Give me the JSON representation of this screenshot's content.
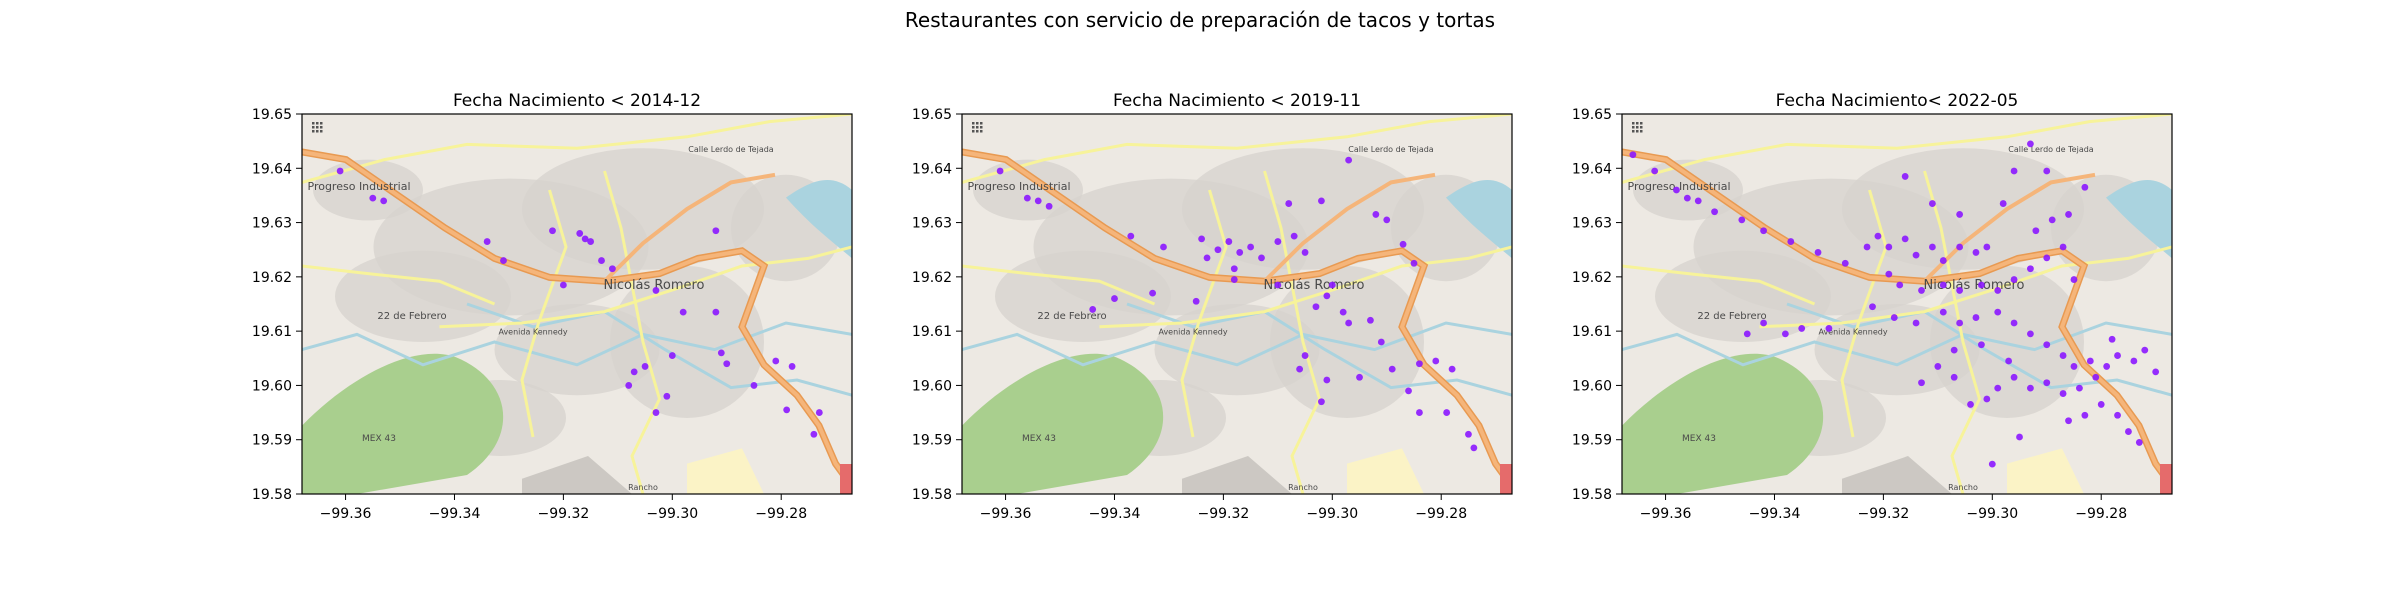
{
  "figure": {
    "suptitle": "Restaurantes con servicio de preparación de tacos y tortas"
  },
  "map": {
    "labels": [
      "Progreso Industrial",
      "Nicolás Romero",
      "22 de Febrero",
      "Avenida Kennedy",
      "Calle Lerdo de Tejada",
      "MEX 43",
      "Rancho"
    ],
    "colors": {
      "land": "#ede9e3",
      "urban": "#d7d3ce",
      "park": "#a9cf8e",
      "water": "#aad3df",
      "major_road": "#f5b57a",
      "minor_road": "#f7f39a",
      "marker": "#8b17ff"
    }
  },
  "chart_data": [
    {
      "type": "scatter",
      "title": "Fecha Nacimiento < 2014-12",
      "xlim": [
        -99.368,
        -99.267
      ],
      "ylim": [
        19.58,
        19.65
      ],
      "xticks": [
        -99.36,
        -99.34,
        -99.32,
        -99.3,
        -99.28
      ],
      "xtick_labels": [
        "−99.36",
        "−99.34",
        "−99.32",
        "−99.30",
        "−99.28"
      ],
      "yticks": [
        19.58,
        19.59,
        19.6,
        19.61,
        19.62,
        19.63,
        19.64,
        19.65
      ],
      "ytick_labels": [
        "19.58",
        "19.59",
        "19.60",
        "19.61",
        "19.62",
        "19.63",
        "19.64",
        "19.65"
      ],
      "series": [
        {
          "color": "#8b17ff",
          "points": [
            [
              -99.361,
              19.6395
            ],
            [
              -99.355,
              19.6345
            ],
            [
              -99.353,
              19.634
            ],
            [
              -99.334,
              19.6265
            ],
            [
              -99.331,
              19.623
            ],
            [
              -99.322,
              19.6285
            ],
            [
              -99.317,
              19.628
            ],
            [
              -99.316,
              19.627
            ],
            [
              -99.315,
              19.6265
            ],
            [
              -99.311,
              19.6215
            ],
            [
              -99.313,
              19.623
            ],
            [
              -99.32,
              19.6185
            ],
            [
              -99.303,
              19.6175
            ],
            [
              -99.292,
              19.6285
            ],
            [
              -99.292,
              19.6135
            ],
            [
              -99.298,
              19.6135
            ],
            [
              -99.3,
              19.6055
            ],
            [
              -99.305,
              19.6035
            ],
            [
              -99.307,
              19.6025
            ],
            [
              -99.308,
              19.6
            ],
            [
              -99.301,
              19.598
            ],
            [
              -99.303,
              19.595
            ],
            [
              -99.291,
              19.606
            ],
            [
              -99.29,
              19.604
            ],
            [
              -99.281,
              19.6045
            ],
            [
              -99.278,
              19.6035
            ],
            [
              -99.285,
              19.6
            ],
            [
              -99.279,
              19.5955
            ],
            [
              -99.273,
              19.595
            ],
            [
              -99.274,
              19.591
            ]
          ]
        }
      ]
    },
    {
      "type": "scatter",
      "title": "Fecha Nacimiento < 2019-11",
      "xlim": [
        -99.368,
        -99.267
      ],
      "ylim": [
        19.58,
        19.65
      ],
      "xticks": [
        -99.36,
        -99.34,
        -99.32,
        -99.3,
        -99.28
      ],
      "xtick_labels": [
        "−99.36",
        "−99.34",
        "−99.32",
        "−99.30",
        "−99.28"
      ],
      "yticks": [
        19.58,
        19.59,
        19.6,
        19.61,
        19.62,
        19.63,
        19.64,
        19.65
      ],
      "ytick_labels": [
        "19.58",
        "19.59",
        "19.60",
        "19.61",
        "19.62",
        "19.63",
        "19.64",
        "19.65"
      ],
      "series": [
        {
          "color": "#8b17ff",
          "points": [
            [
              -99.361,
              19.6395
            ],
            [
              -99.356,
              19.6345
            ],
            [
              -99.354,
              19.634
            ],
            [
              -99.352,
              19.633
            ],
            [
              -99.337,
              19.6275
            ],
            [
              -99.331,
              19.6255
            ],
            [
              -99.324,
              19.627
            ],
            [
              -99.321,
              19.625
            ],
            [
              -99.319,
              19.6265
            ],
            [
              -99.317,
              19.6245
            ],
            [
              -99.315,
              19.6255
            ],
            [
              -99.313,
              19.6235
            ],
            [
              -99.323,
              19.6235
            ],
            [
              -99.318,
              19.6215
            ],
            [
              -99.318,
              19.6195
            ],
            [
              -99.307,
              19.6275
            ],
            [
              -99.31,
              19.6265
            ],
            [
              -99.305,
              19.6245
            ],
            [
              -99.302,
              19.634
            ],
            [
              -99.297,
              19.6415
            ],
            [
              -99.29,
              19.6305
            ],
            [
              -99.31,
              19.6185
            ],
            [
              -99.3,
              19.6185
            ],
            [
              -99.301,
              19.6165
            ],
            [
              -99.303,
              19.6145
            ],
            [
              -99.298,
              19.6135
            ],
            [
              -99.297,
              19.6115
            ],
            [
              -99.293,
              19.612
            ],
            [
              -99.305,
              19.6055
            ],
            [
              -99.306,
              19.603
            ],
            [
              -99.301,
              19.601
            ],
            [
              -99.302,
              19.597
            ],
            [
              -99.295,
              19.6015
            ],
            [
              -99.291,
              19.608
            ],
            [
              -99.289,
              19.603
            ],
            [
              -99.286,
              19.599
            ],
            [
              -99.284,
              19.604
            ],
            [
              -99.281,
              19.6045
            ],
            [
              -99.278,
              19.603
            ],
            [
              -99.279,
              19.595
            ],
            [
              -99.284,
              19.595
            ],
            [
              -99.275,
              19.591
            ],
            [
              -99.274,
              19.5885
            ],
            [
              -99.333,
              19.617
            ],
            [
              -99.325,
              19.6155
            ],
            [
              -99.34,
              19.616
            ],
            [
              -99.344,
              19.614
            ],
            [
              -99.285,
              19.6225
            ],
            [
              -99.287,
              19.626
            ],
            [
              -99.308,
              19.6335
            ],
            [
              -99.292,
              19.6315
            ]
          ]
        }
      ]
    },
    {
      "type": "scatter",
      "title": "Fecha Nacimiento< 2022-05",
      "xlim": [
        -99.368,
        -99.267
      ],
      "ylim": [
        19.58,
        19.65
      ],
      "xticks": [
        -99.36,
        -99.34,
        -99.32,
        -99.3,
        -99.28
      ],
      "xtick_labels": [
        "−99.36",
        "−99.34",
        "−99.32",
        "−99.30",
        "−99.28"
      ],
      "yticks": [
        19.58,
        19.59,
        19.6,
        19.61,
        19.62,
        19.63,
        19.64,
        19.65
      ],
      "ytick_labels": [
        "19.58",
        "19.59",
        "19.60",
        "19.61",
        "19.62",
        "19.63",
        "19.64",
        "19.65"
      ],
      "series": [
        {
          "color": "#8b17ff",
          "points": [
            [
              -99.366,
              19.6425
            ],
            [
              -99.362,
              19.6395
            ],
            [
              -99.358,
              19.636
            ],
            [
              -99.356,
              19.6345
            ],
            [
              -99.354,
              19.634
            ],
            [
              -99.351,
              19.632
            ],
            [
              -99.346,
              19.6305
            ],
            [
              -99.342,
              19.6285
            ],
            [
              -99.337,
              19.6265
            ],
            [
              -99.332,
              19.6245
            ],
            [
              -99.327,
              19.6225
            ],
            [
              -99.323,
              19.6255
            ],
            [
              -99.321,
              19.6275
            ],
            [
              -99.319,
              19.6255
            ],
            [
              -99.316,
              19.627
            ],
            [
              -99.314,
              19.624
            ],
            [
              -99.311,
              19.6255
            ],
            [
              -99.309,
              19.623
            ],
            [
              -99.306,
              19.6255
            ],
            [
              -99.303,
              19.6245
            ],
            [
              -99.301,
              19.6255
            ],
            [
              -99.319,
              19.6205
            ],
            [
              -99.317,
              19.6185
            ],
            [
              -99.313,
              19.6175
            ],
            [
              -99.309,
              19.6185
            ],
            [
              -99.306,
              19.6175
            ],
            [
              -99.302,
              19.6185
            ],
            [
              -99.299,
              19.6175
            ],
            [
              -99.296,
              19.6195
            ],
            [
              -99.293,
              19.6215
            ],
            [
              -99.29,
              19.6235
            ],
            [
              -99.287,
              19.6255
            ],
            [
              -99.285,
              19.6195
            ],
            [
              -99.298,
              19.6335
            ],
            [
              -99.296,
              19.6395
            ],
            [
              -99.293,
              19.6445
            ],
            [
              -99.292,
              19.6285
            ],
            [
              -99.289,
              19.6305
            ],
            [
              -99.286,
              19.6315
            ],
            [
              -99.283,
              19.6365
            ],
            [
              -99.29,
              19.6395
            ],
            [
              -99.316,
              19.6385
            ],
            [
              -99.311,
              19.6335
            ],
            [
              -99.306,
              19.6315
            ],
            [
              -99.33,
              19.6105
            ],
            [
              -99.335,
              19.6105
            ],
            [
              -99.338,
              19.6095
            ],
            [
              -99.342,
              19.6115
            ],
            [
              -99.345,
              19.6095
            ],
            [
              -99.322,
              19.6145
            ],
            [
              -99.318,
              19.6125
            ],
            [
              -99.314,
              19.6115
            ],
            [
              -99.309,
              19.6135
            ],
            [
              -99.306,
              19.6115
            ],
            [
              -99.303,
              19.6125
            ],
            [
              -99.299,
              19.6135
            ],
            [
              -99.296,
              19.6115
            ],
            [
              -99.293,
              19.6095
            ],
            [
              -99.29,
              19.6075
            ],
            [
              -99.287,
              19.6055
            ],
            [
              -99.285,
              19.6035
            ],
            [
              -99.282,
              19.6045
            ],
            [
              -99.279,
              19.6035
            ],
            [
              -99.277,
              19.6055
            ],
            [
              -99.274,
              19.6045
            ],
            [
              -99.272,
              19.6065
            ],
            [
              -99.27,
              19.6025
            ],
            [
              -99.278,
              19.6085
            ],
            [
              -99.281,
              19.6015
            ],
            [
              -99.284,
              19.5995
            ],
            [
              -99.287,
              19.5985
            ],
            [
              -99.29,
              19.6005
            ],
            [
              -99.293,
              19.5995
            ],
            [
              -99.296,
              19.6015
            ],
            [
              -99.299,
              19.5995
            ],
            [
              -99.301,
              19.5975
            ],
            [
              -99.304,
              19.5965
            ],
            [
              -99.307,
              19.6015
            ],
            [
              -99.31,
              19.6035
            ],
            [
              -99.313,
              19.6005
            ],
            [
              -99.28,
              19.5965
            ],
            [
              -99.277,
              19.5945
            ],
            [
              -99.275,
              19.5915
            ],
            [
              -99.273,
              19.5895
            ],
            [
              -99.283,
              19.5945
            ],
            [
              -99.286,
              19.5935
            ],
            [
              -99.297,
              19.6045
            ],
            [
              -99.302,
              19.6075
            ],
            [
              -99.307,
              19.6065
            ],
            [
              -99.295,
              19.5905
            ],
            [
              -99.3,
              19.5855
            ]
          ]
        }
      ]
    }
  ]
}
